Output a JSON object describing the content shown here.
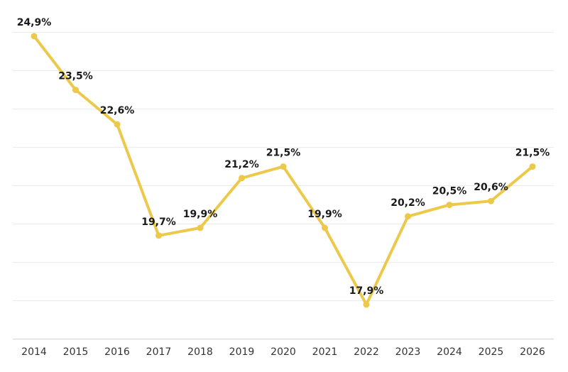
{
  "chart_data": {
    "type": "line",
    "title": "",
    "xlabel": "",
    "ylabel": "",
    "categories": [
      "2014",
      "2015",
      "2016",
      "2017",
      "2018",
      "2019",
      "2020",
      "2021",
      "2022",
      "2023",
      "2024",
      "2025",
      "2026"
    ],
    "series": [
      {
        "values": [
          24.9,
          23.5,
          22.6,
          19.7,
          19.9,
          21.2,
          21.5,
          19.9,
          17.9,
          20.2,
          20.5,
          20.6,
          21.5
        ],
        "labels": [
          "24,9%",
          "23,5%",
          "22,6%",
          "19,7%",
          "19,9%",
          "21,2%",
          "21,5%",
          "19,9%",
          "17,9%",
          "20,2%",
          "20,5%",
          "20,6%",
          "21,5%"
        ],
        "color": "#ecc94b"
      }
    ],
    "ylim": [
      17.0,
      25.0
    ],
    "y_gridlines": [
      17.0,
      18.0,
      19.0,
      20.0,
      21.0,
      22.0,
      23.0,
      24.0,
      25.0
    ],
    "grid": true,
    "legend": "none"
  }
}
